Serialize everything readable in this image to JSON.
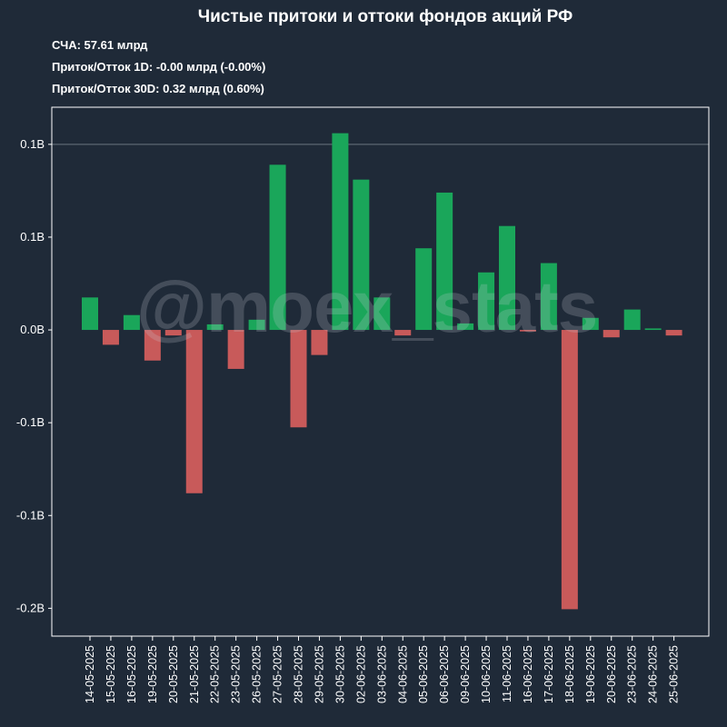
{
  "header": {
    "title": "Чистые притоки и оттоки фондов акций РФ",
    "nav_label": "СЧА:",
    "nav_value": "57.61 млрд",
    "flow_1d_label": "Приток/Отток 1D:",
    "flow_1d_value": "-0.00 млрд (-0.00%)",
    "flow_30d_label": "Приток/Отток 30D:",
    "flow_30d_value": "0.32 млрд (0.60%)"
  },
  "watermark": "@moex_stats",
  "colors": {
    "background": "#1f2a38",
    "positive": "#1aa65a",
    "negative": "#c85a5a",
    "axis": "#ffffff",
    "gridline": "#6b7480"
  },
  "chart_data": {
    "type": "bar",
    "title": "Чистые притоки и оттоки фондов акций РФ",
    "xlabel": "",
    "ylabel": "",
    "ylim": [
      -0.165,
      0.12
    ],
    "y_ticks": [
      {
        "value": 0.1,
        "label": "0.1B"
      },
      {
        "value": 0.05,
        "label": "0.1B"
      },
      {
        "value": 0.0,
        "label": "0.0B"
      },
      {
        "value": -0.05,
        "label": "-0.1B"
      },
      {
        "value": -0.1,
        "label": "-0.1B"
      },
      {
        "value": -0.15,
        "label": "-0.2B"
      }
    ],
    "grid": false,
    "gridlines": [
      0.1
    ],
    "categories": [
      "14-05-2025",
      "15-05-2025",
      "16-05-2025",
      "19-05-2025",
      "20-05-2025",
      "21-05-2025",
      "22-05-2025",
      "23-05-2025",
      "26-05-2025",
      "27-05-2025",
      "28-05-2025",
      "29-05-2025",
      "30-05-2025",
      "02-06-2025",
      "03-06-2025",
      "04-06-2025",
      "05-06-2025",
      "06-06-2025",
      "09-06-2025",
      "10-06-2025",
      "11-06-2025",
      "16-06-2025",
      "17-06-2025",
      "18-06-2025",
      "19-06-2025",
      "20-06-2025",
      "23-06-2025",
      "24-06-2025",
      "25-06-2025"
    ],
    "values": [
      0.0175,
      -0.008,
      0.008,
      -0.0165,
      -0.003,
      -0.088,
      0.003,
      -0.021,
      0.0055,
      0.089,
      -0.0525,
      -0.0135,
      0.106,
      0.081,
      0.0175,
      -0.003,
      0.044,
      0.074,
      0.0035,
      0.031,
      0.056,
      -0.0008,
      0.036,
      -0.1505,
      0.0065,
      -0.004,
      0.011,
      0.0008,
      -0.003
    ]
  }
}
